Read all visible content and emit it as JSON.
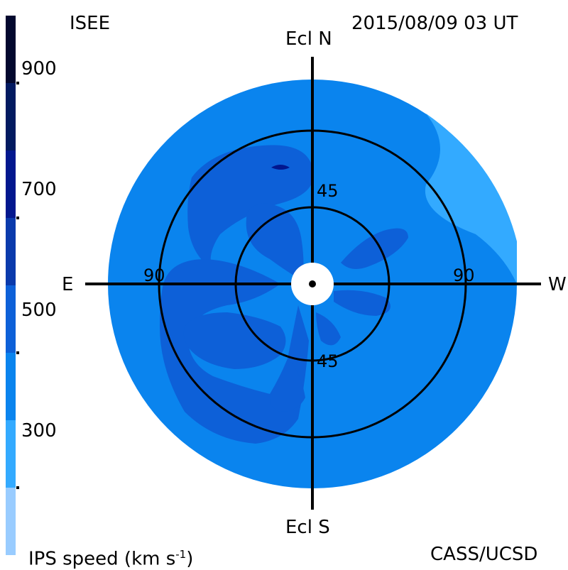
{
  "header": {
    "source": "ISEE",
    "timestamp": "2015/08/09 03 UT"
  },
  "footer": {
    "colorbar_title": "IPS speed (km s",
    "colorbar_title_exp": "-1",
    "colorbar_title_tail": ")",
    "credit": "CASS/UCSD"
  },
  "chart_data": {
    "type": "polar-map",
    "colorbar": {
      "tick_labels": [
        "900",
        "700",
        "500",
        "300"
      ],
      "tick_values": [
        900,
        700,
        500,
        300
      ],
      "range": [
        200,
        1000
      ],
      "bands": [
        {
          "min": 200,
          "max": 300,
          "color": "#99ccff"
        },
        {
          "min": 300,
          "max": 400,
          "color": "#33aaff"
        },
        {
          "min": 400,
          "max": 500,
          "color": "#0a84ee"
        },
        {
          "min": 500,
          "max": 600,
          "color": "#0d60d8"
        },
        {
          "min": 600,
          "max": 700,
          "color": "#0a3aac"
        },
        {
          "min": 700,
          "max": 800,
          "color": "#02178e"
        },
        {
          "min": 800,
          "max": 900,
          "color": "#021a60"
        },
        {
          "min": 900,
          "max": 1000,
          "color": "#03082e"
        }
      ]
    },
    "axes": {
      "north": "Ecl N",
      "south": "Ecl S",
      "east": "E",
      "west": "W"
    },
    "rings": [
      {
        "elongation_deg": 45,
        "labels": [
          "45",
          "45"
        ]
      },
      {
        "elongation_deg": 90,
        "labels": [
          "90",
          "90"
        ]
      }
    ],
    "max_elongation_deg": 120,
    "background_speed": 450,
    "regions": [
      {
        "kind": "enhanced",
        "speed": 550,
        "sector": "north"
      },
      {
        "kind": "enhanced",
        "speed": 550,
        "sector": "north-east"
      },
      {
        "kind": "enhanced",
        "speed": 550,
        "sector": "south-east"
      },
      {
        "kind": "enhanced",
        "speed": 550,
        "sector": "south"
      },
      {
        "kind": "enhanced",
        "speed": 550,
        "sector": "east-of-center"
      },
      {
        "kind": "slow",
        "speed": 350,
        "sector": "north-west"
      },
      {
        "kind": "peak",
        "speed": 650,
        "sector": "north"
      }
    ]
  }
}
